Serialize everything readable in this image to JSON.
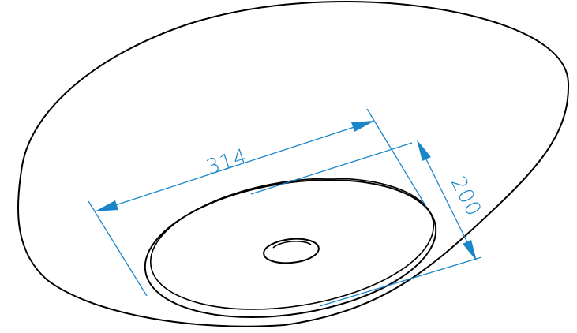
{
  "drawing": {
    "dimension_color": "#1a86c8",
    "outline_color": "#000000",
    "dimensions": {
      "length": "314",
      "width": "200"
    }
  }
}
